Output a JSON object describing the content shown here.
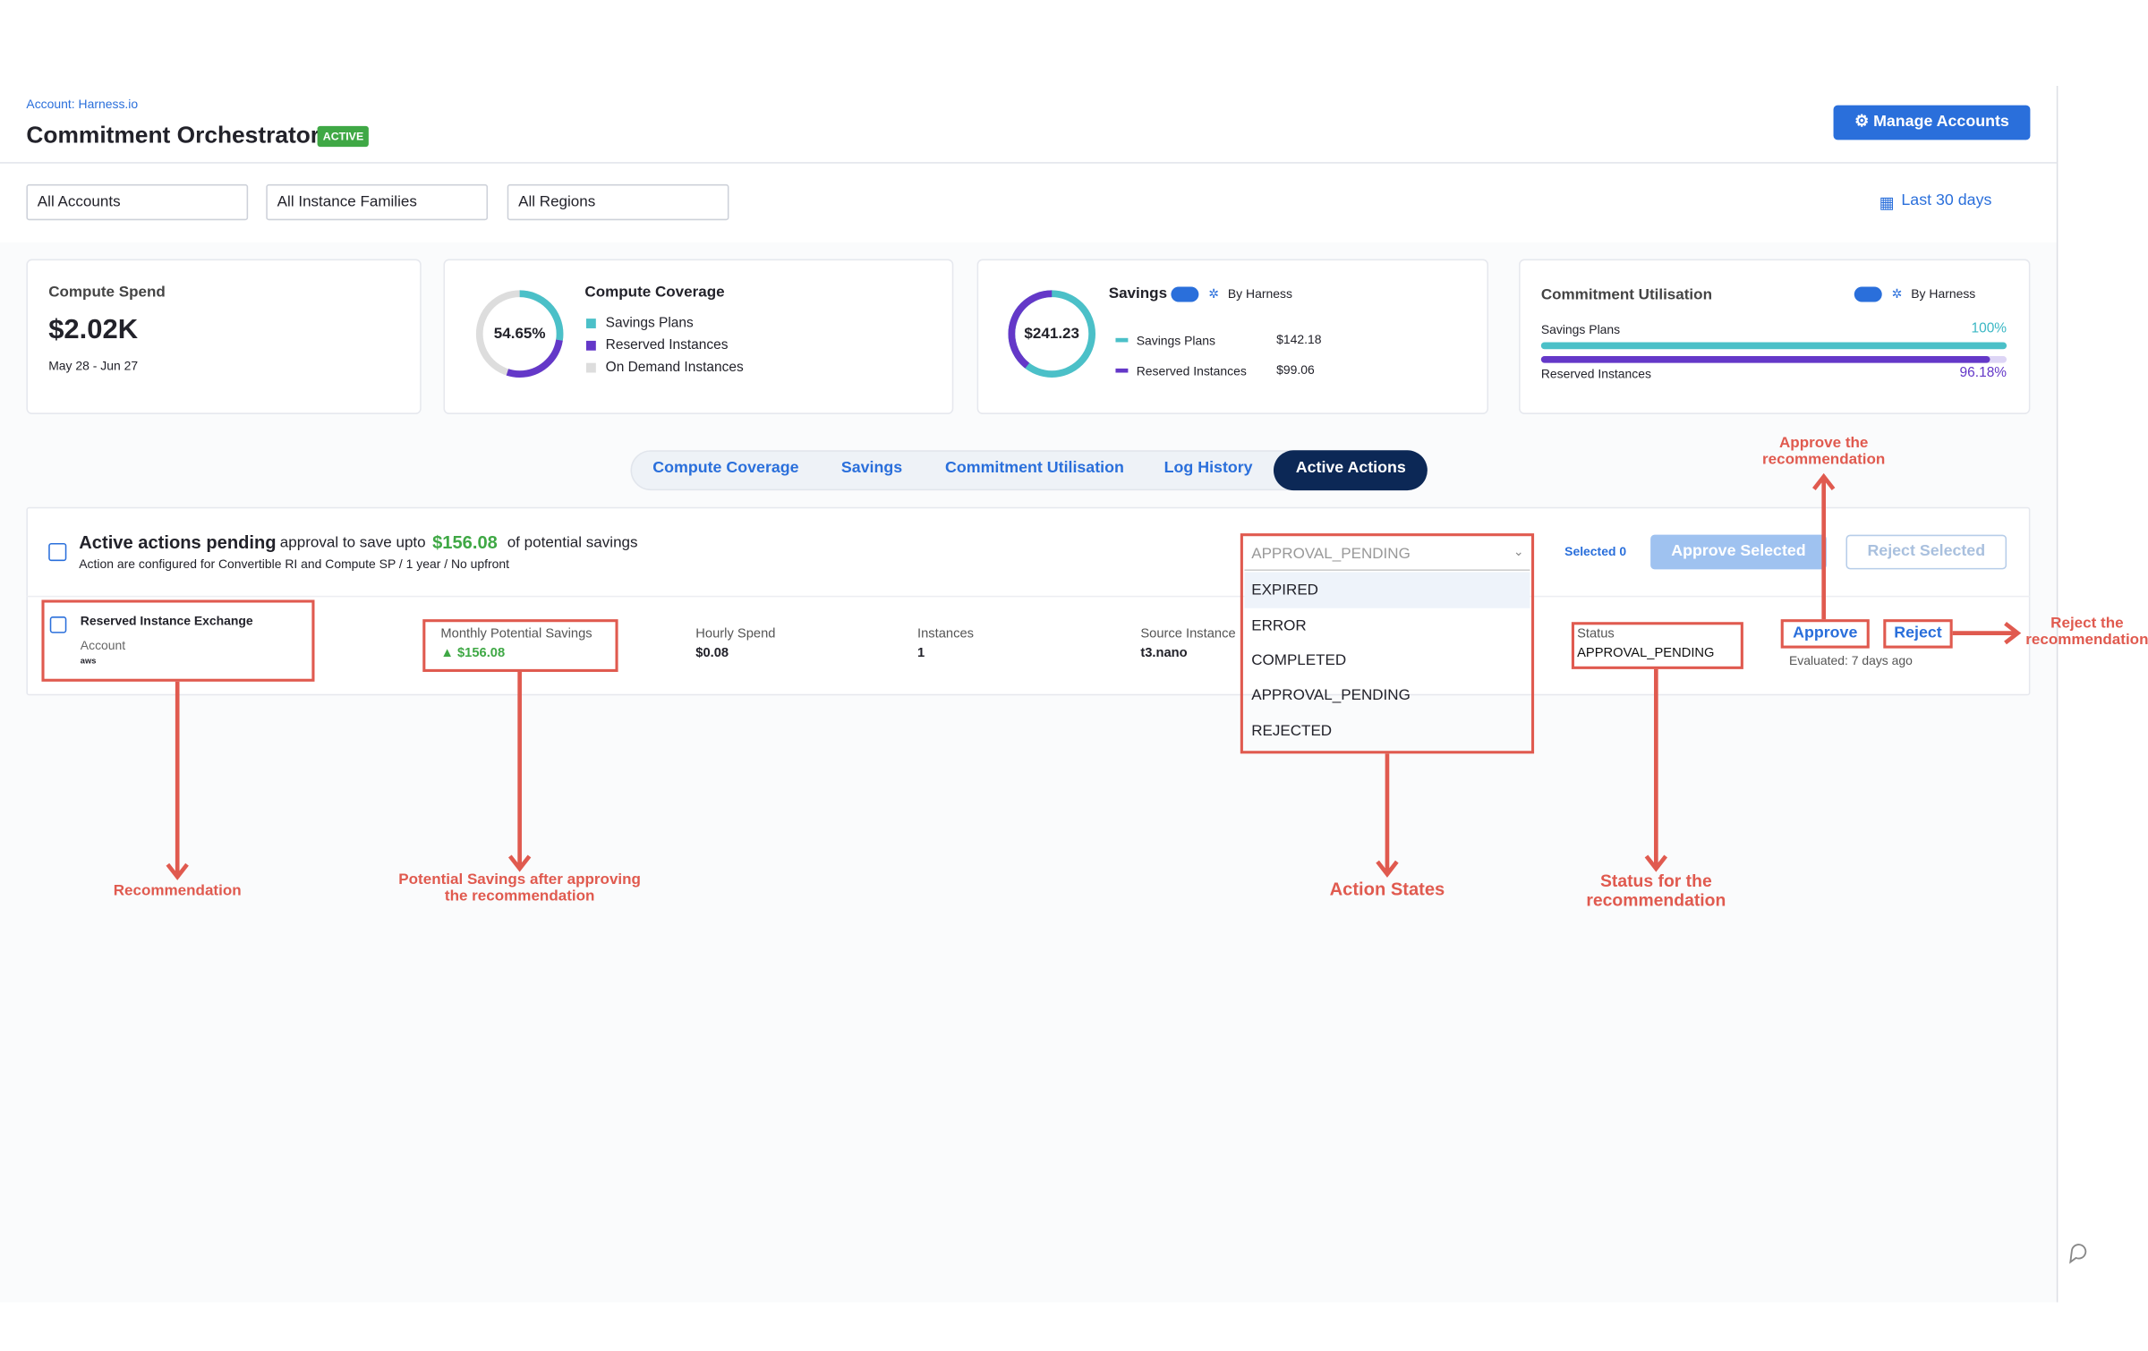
{
  "header": {
    "account": "Account: Harness.io",
    "title": "Commitment Orchestrator",
    "badge": "ACTIVE",
    "manage_button": "Manage Accounts"
  },
  "filters": {
    "items": [
      "All Accounts",
      "All Instance Families",
      "All Regions"
    ],
    "date_range": "Last 30 days"
  },
  "cards": {
    "spend": {
      "title": "Compute Spend",
      "value": "$2.02K",
      "period": "May 28 - Jun 27"
    },
    "coverage": {
      "title": "Compute Coverage",
      "center": "54.65%",
      "legend": [
        "Savings Plans",
        "Reserved Instances",
        "On Demand Instances"
      ]
    },
    "savings": {
      "title": "Savings",
      "by": "By Harness",
      "center": "$241.23",
      "rows": [
        {
          "label": "Savings Plans",
          "value": "$142.18"
        },
        {
          "label": "Reserved Instances",
          "value": "$99.06"
        }
      ]
    },
    "utilisation": {
      "title": "Commitment Utilisation",
      "by": "By Harness",
      "rows": [
        {
          "label": "Savings Plans",
          "value": "100%"
        },
        {
          "label": "Reserved Instances",
          "value": "96.18%"
        }
      ]
    }
  },
  "tabs": [
    "Compute Coverage",
    "Savings",
    "Commitment Utilisation",
    "Log History",
    "Active Actions"
  ],
  "actions": {
    "heading": "Active actions pending",
    "text1": "approval to save upto",
    "amount": "$156.08",
    "text2": "of potential savings",
    "subtitle": "Action are configured for Convertible RI and Compute SP / 1 year / No upfront",
    "dropdown": "APPROVAL_PENDING",
    "options": [
      "EXPIRED",
      "ERROR",
      "COMPLETED",
      "APPROVAL_PENDING",
      "REJECTED"
    ],
    "selected": "Selected 0",
    "approve_selected": "Approve Selected",
    "reject_selected": "Reject Selected"
  },
  "row": {
    "title": "Reserved Instance Exchange",
    "account": "Account",
    "provider": "aws",
    "columns": [
      {
        "label": "Monthly Potential Savings",
        "value": "$156.08"
      },
      {
        "label": "Hourly Spend",
        "value": "$0.08"
      },
      {
        "label": "Instances",
        "value": "1"
      },
      {
        "label": "Source Instance",
        "value": "t3.nano"
      }
    ],
    "status_label": "Status",
    "status": "APPROVAL_PENDING",
    "approve": "Approve",
    "reject": "Reject",
    "evaluated": "Evaluated: 7 days ago"
  },
  "annotations": {
    "recommendation": "Recommendation",
    "savings": "Potential Savings after approving the recommendation",
    "states": "Action States",
    "status": "Status for the recommendation",
    "approve": "Approve the recommendation",
    "reject": "Reject the recommendation"
  }
}
